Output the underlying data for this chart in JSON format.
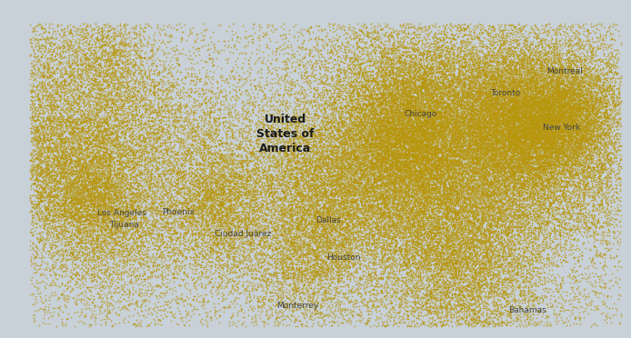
{
  "background_color": "#c8d0d8",
  "land_color": "#ffffff",
  "border_color": "#aaaaaa",
  "water_color": "#b8c4cc",
  "dot_color": "#b8960a",
  "dot_alpha": 0.75,
  "dot_size": 1.5,
  "map_extent": [
    -128,
    -65,
    23,
    52
  ],
  "city_labels": [
    {
      "name": "Chicago",
      "lon": -87.63,
      "lat": 41.88,
      "ha": "left",
      "va": "bottom"
    },
    {
      "name": "New York",
      "lon": -73.8,
      "lat": 40.71,
      "ha": "left",
      "va": "bottom"
    },
    {
      "name": "Los Angeles",
      "lon": -118.3,
      "lat": 34.05,
      "ha": "left",
      "va": "top"
    },
    {
      "name": "Houston",
      "lon": -95.37,
      "lat": 29.55,
      "ha": "left",
      "va": "bottom"
    },
    {
      "name": "Dallas",
      "lon": -96.5,
      "lat": 32.78,
      "ha": "left",
      "va": "bottom"
    },
    {
      "name": "Phoenix",
      "lon": -111.8,
      "lat": 33.45,
      "ha": "left",
      "va": "bottom"
    },
    {
      "name": "Montreal",
      "lon": -73.4,
      "lat": 45.5,
      "ha": "left",
      "va": "bottom"
    },
    {
      "name": "Toronto",
      "lon": -79.1,
      "lat": 43.65,
      "ha": "left",
      "va": "bottom"
    },
    {
      "name": "Tijuana",
      "lon": -117.1,
      "lat": 32.35,
      "ha": "left",
      "va": "bottom"
    },
    {
      "name": "Ciudad Juárez",
      "lon": -106.6,
      "lat": 31.55,
      "ha": "left",
      "va": "bottom"
    },
    {
      "name": "Monterrey",
      "lon": -100.4,
      "lat": 25.45,
      "ha": "left",
      "va": "bottom"
    },
    {
      "name": "Bahamas",
      "lon": -77.2,
      "lat": 25.0,
      "ha": "left",
      "va": "bottom"
    }
  ],
  "usa_label": {
    "text": "United\nStates of\nAmerica",
    "lon": -99.5,
    "lat": 40.5
  },
  "major_cities": [
    {
      "lon": -87.63,
      "lat": 41.88,
      "weight": 6.0
    },
    {
      "lon": -74.0,
      "lat": 40.71,
      "weight": 8.0
    },
    {
      "lon": -118.24,
      "lat": 34.05,
      "weight": 7.0
    },
    {
      "lon": -95.37,
      "lat": 29.76,
      "weight": 5.0
    },
    {
      "lon": -96.8,
      "lat": 32.78,
      "weight": 5.0
    },
    {
      "lon": -122.33,
      "lat": 47.61,
      "weight": 5.0
    },
    {
      "lon": -122.42,
      "lat": 37.77,
      "weight": 5.0
    },
    {
      "lon": -104.99,
      "lat": 39.74,
      "weight": 3.5
    },
    {
      "lon": -112.07,
      "lat": 33.45,
      "weight": 4.0
    },
    {
      "lon": -80.19,
      "lat": 25.77,
      "weight": 4.5
    },
    {
      "lon": -84.39,
      "lat": 33.75,
      "weight": 4.5
    },
    {
      "lon": -75.16,
      "lat": 39.95,
      "weight": 6.0
    },
    {
      "lon": -71.06,
      "lat": 42.36,
      "weight": 6.0
    },
    {
      "lon": -77.04,
      "lat": 38.91,
      "weight": 5.5
    },
    {
      "lon": -83.05,
      "lat": 42.33,
      "weight": 4.0
    },
    {
      "lon": -93.27,
      "lat": 44.98,
      "weight": 3.5
    },
    {
      "lon": -90.07,
      "lat": 35.15,
      "weight": 3.5
    },
    {
      "lon": -86.16,
      "lat": 39.77,
      "weight": 3.5
    },
    {
      "lon": -81.38,
      "lat": 28.54,
      "weight": 3.5
    },
    {
      "lon": -82.46,
      "lat": 27.95,
      "weight": 3.0
    },
    {
      "lon": -80.84,
      "lat": 35.23,
      "weight": 3.5
    },
    {
      "lon": -79.96,
      "lat": 40.44,
      "weight": 4.5
    },
    {
      "lon": -73.79,
      "lat": 42.65,
      "weight": 3.0
    },
    {
      "lon": -76.61,
      "lat": 39.29,
      "weight": 3.5
    },
    {
      "lon": -72.68,
      "lat": 41.76,
      "weight": 3.0
    },
    {
      "lon": -88.02,
      "lat": 44.51,
      "weight": 2.5
    },
    {
      "lon": -92.33,
      "lat": 34.74,
      "weight": 2.5
    },
    {
      "lon": -97.33,
      "lat": 37.69,
      "weight": 3.0
    },
    {
      "lon": -85.66,
      "lat": 42.96,
      "weight": 2.5
    },
    {
      "lon": -111.89,
      "lat": 40.76,
      "weight": 3.0
    },
    {
      "lon": -117.16,
      "lat": 32.72,
      "weight": 4.0
    },
    {
      "lon": -119.77,
      "lat": 36.75,
      "weight": 3.0
    },
    {
      "lon": -121.49,
      "lat": 38.58,
      "weight": 3.0
    },
    {
      "lon": -118.3,
      "lat": 34.1,
      "weight": 2.5
    },
    {
      "lon": -117.87,
      "lat": 33.84,
      "weight": 2.5
    },
    {
      "lon": -87.95,
      "lat": 43.04,
      "weight": 2.5
    },
    {
      "lon": -76.15,
      "lat": 43.05,
      "weight": 2.5
    },
    {
      "lon": -78.88,
      "lat": 42.89,
      "weight": 3.0
    },
    {
      "lon": -81.69,
      "lat": 41.5,
      "weight": 4.0
    },
    {
      "lon": -73.21,
      "lat": 41.16,
      "weight": 2.5
    },
    {
      "lon": -86.78,
      "lat": 36.17,
      "weight": 3.0
    },
    {
      "lon": -90.19,
      "lat": 38.63,
      "weight": 3.0
    },
    {
      "lon": -94.58,
      "lat": 39.1,
      "weight": 3.0
    },
    {
      "lon": -97.51,
      "lat": 35.47,
      "weight": 3.0
    },
    {
      "lon": -81.66,
      "lat": 30.33,
      "weight": 3.0
    },
    {
      "lon": -117.4,
      "lat": 47.66,
      "weight": 2.0
    },
    {
      "lon": -123.1,
      "lat": 44.05,
      "weight": 2.5
    },
    {
      "lon": -116.2,
      "lat": 43.61,
      "weight": 2.0
    },
    {
      "lon": -105.94,
      "lat": 35.69,
      "weight": 2.0
    },
    {
      "lon": -106.65,
      "lat": 35.08,
      "weight": 2.0
    },
    {
      "lon": -98.49,
      "lat": 29.42,
      "weight": 3.0
    },
    {
      "lon": -106.48,
      "lat": 31.76,
      "weight": 2.0
    },
    {
      "lon": -89.65,
      "lat": 39.8,
      "weight": 2.0
    },
    {
      "lon": -85.76,
      "lat": 38.25,
      "weight": 2.0
    },
    {
      "lon": -84.51,
      "lat": 39.13,
      "weight": 2.5
    },
    {
      "lon": -88.24,
      "lat": 40.12,
      "weight": 2.0
    },
    {
      "lon": -76.88,
      "lat": 40.27,
      "weight": 2.5
    },
    {
      "lon": -74.48,
      "lat": 39.36,
      "weight": 3.0
    },
    {
      "lon": -73.95,
      "lat": 41.7,
      "weight": 2.5
    },
    {
      "lon": -72.93,
      "lat": 41.31,
      "weight": 2.0
    },
    {
      "lon": -71.41,
      "lat": 41.82,
      "weight": 2.5
    },
    {
      "lon": -70.94,
      "lat": 42.36,
      "weight": 2.0
    }
  ]
}
